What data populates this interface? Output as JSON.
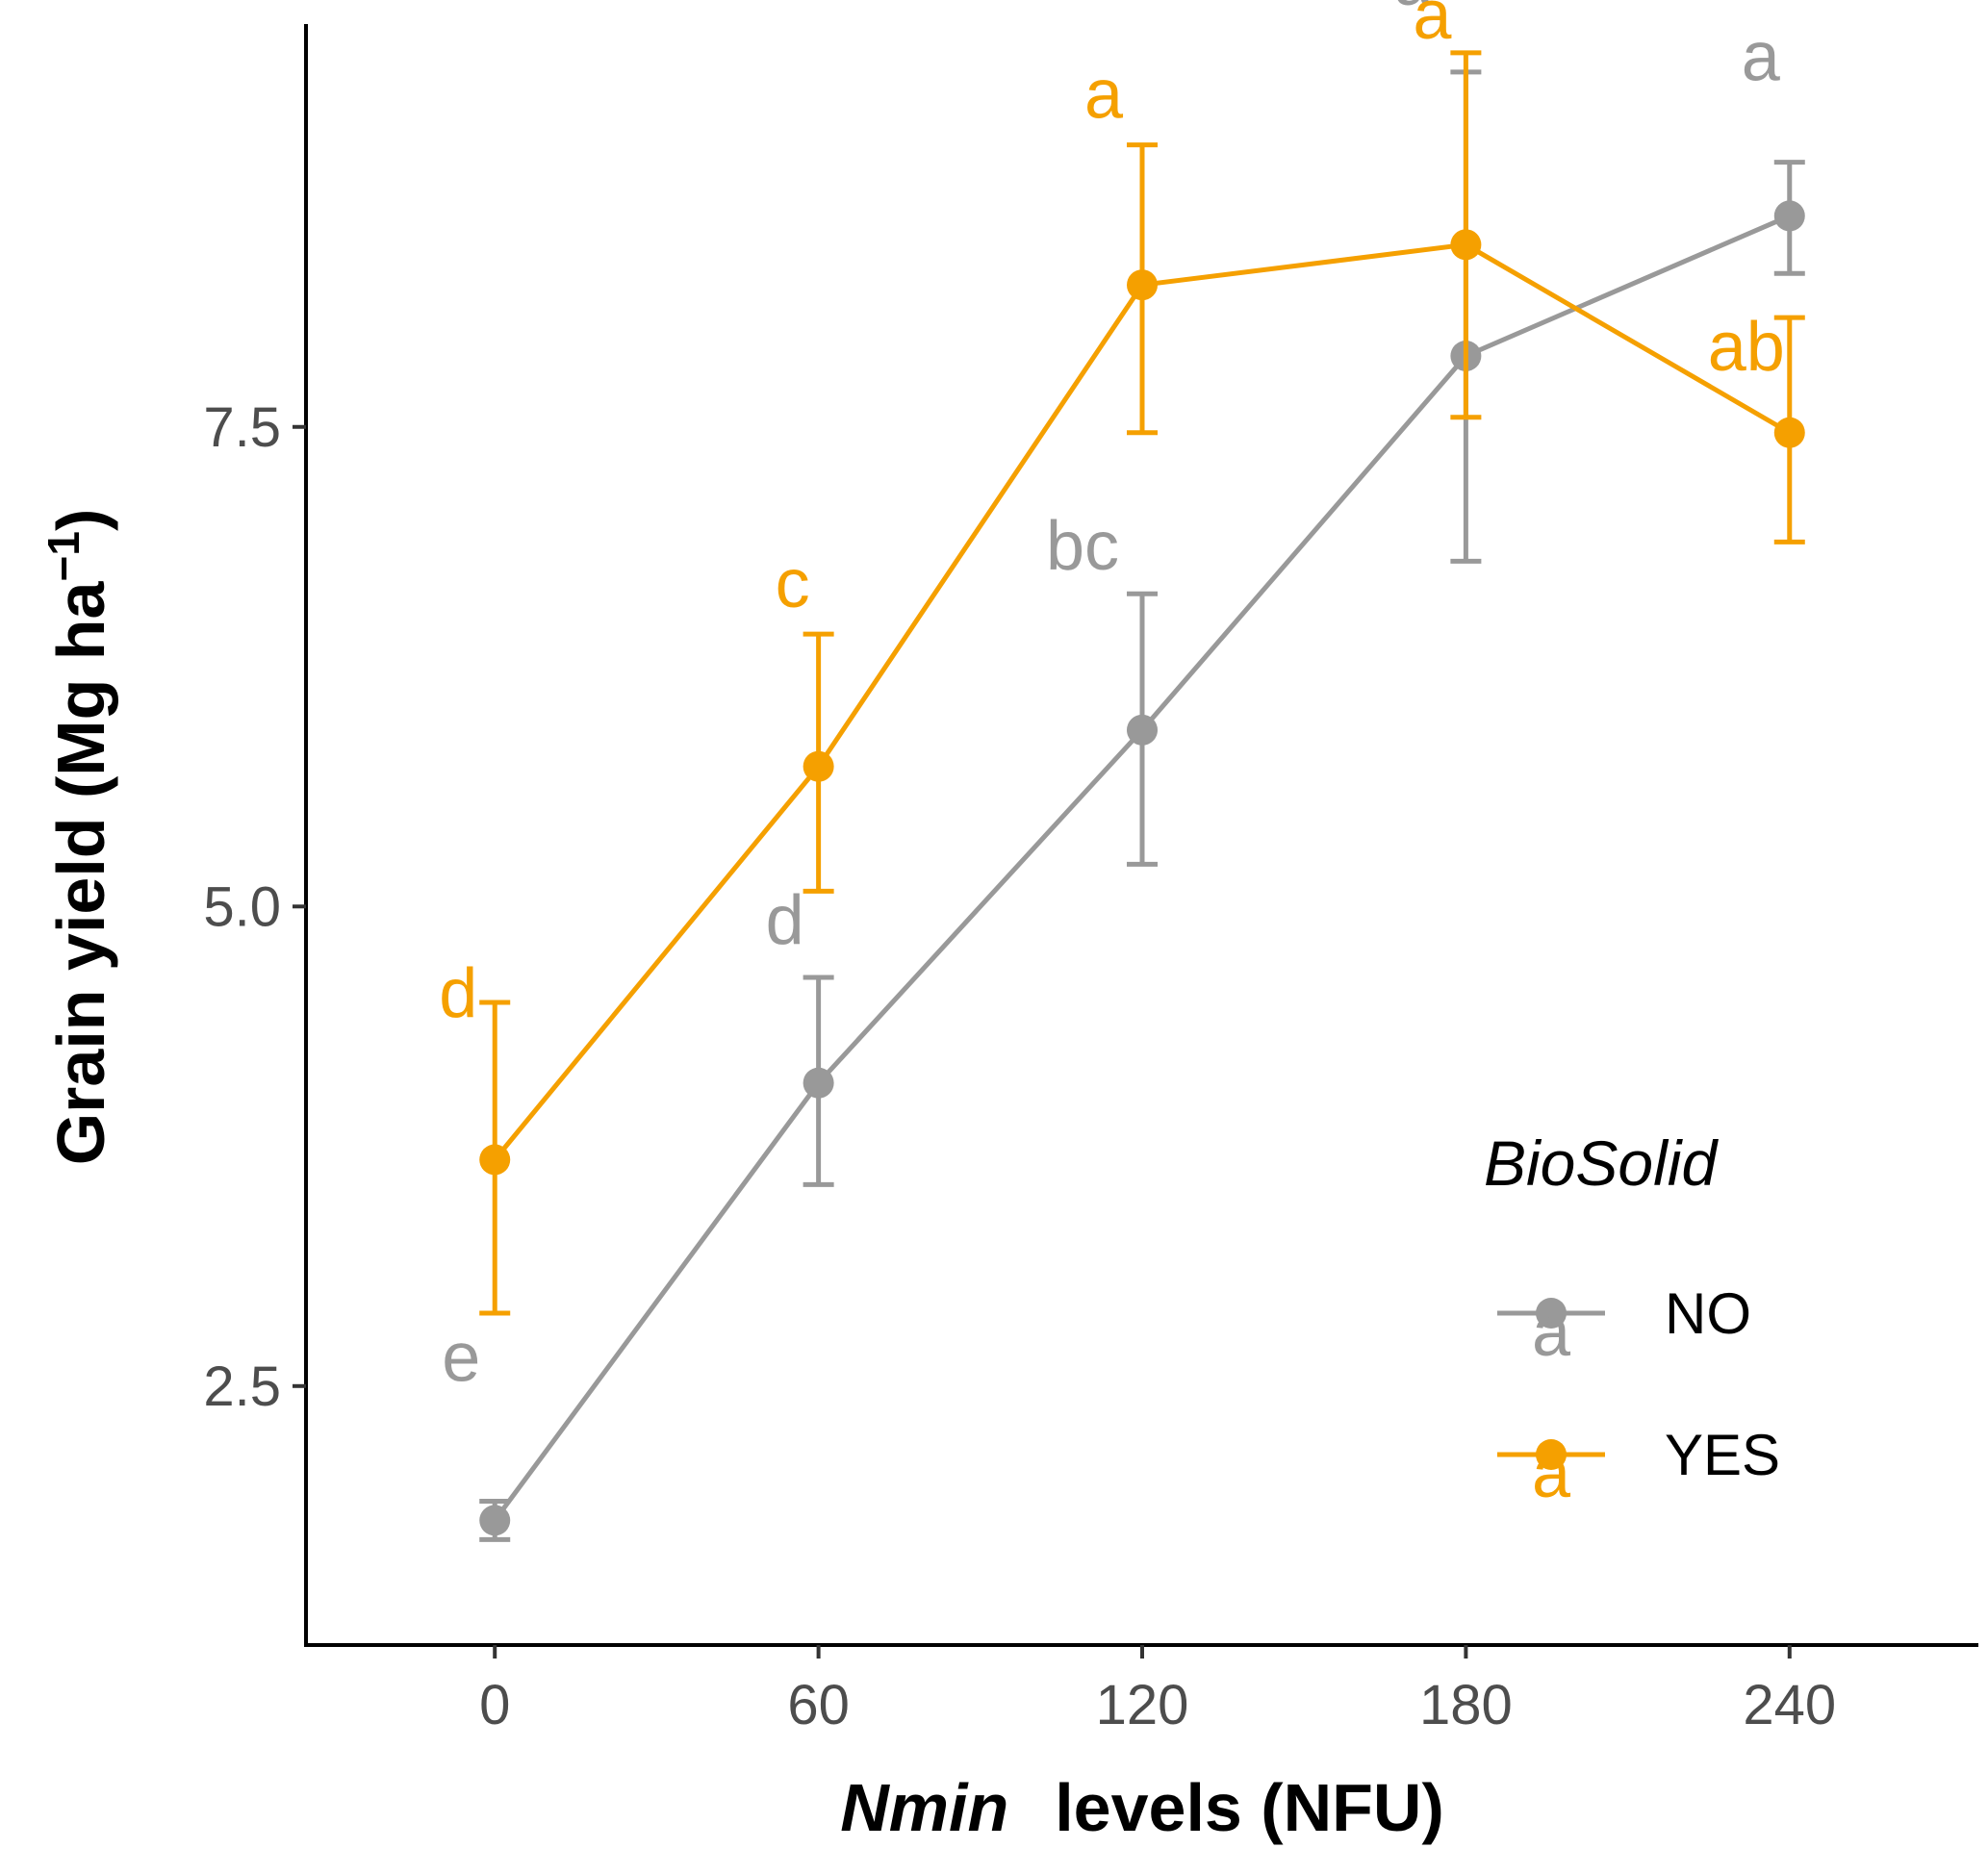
{
  "chart_data": {
    "type": "line",
    "x": [
      0,
      60,
      120,
      180,
      240
    ],
    "x_tick_labels": [
      "0",
      "60",
      "120",
      "180",
      "240"
    ],
    "xlim": [
      -35,
      275
    ],
    "ylim": [
      1.15,
      9.6
    ],
    "y_ticks": [
      2.5,
      5.0,
      7.5
    ],
    "y_tick_labels": [
      "2.5",
      "5.0",
      "7.5"
    ],
    "xlabel_italic": "Nmin",
    "xlabel_rest": "levels (NFU)",
    "ylabel_main": "Grain yield (Mg ha",
    "ylabel_sup": "−1",
    "ylabel_close": ")",
    "grid": false,
    "legend": {
      "title": "BioSolid",
      "position": "right",
      "key_glyph": "a"
    },
    "series": [
      {
        "name": "NO",
        "color": "#999999",
        "values": [
          1.8,
          4.08,
          5.92,
          7.87,
          8.6
        ],
        "err_low": [
          1.7,
          3.55,
          5.22,
          6.8,
          8.3
        ],
        "err_high": [
          1.9,
          4.63,
          6.63,
          9.35,
          8.88
        ],
        "letters": [
          "e",
          "d",
          "bc",
          "a",
          "a"
        ]
      },
      {
        "name": "YES",
        "color": "#f5a000",
        "values": [
          3.68,
          5.73,
          8.24,
          8.45,
          7.47
        ],
        "err_low": [
          2.88,
          5.08,
          7.47,
          7.55,
          6.9
        ],
        "err_high": [
          4.5,
          6.42,
          8.97,
          9.45,
          8.07
        ],
        "letters": [
          "d",
          "c",
          "a",
          "a",
          "ab"
        ]
      }
    ]
  }
}
